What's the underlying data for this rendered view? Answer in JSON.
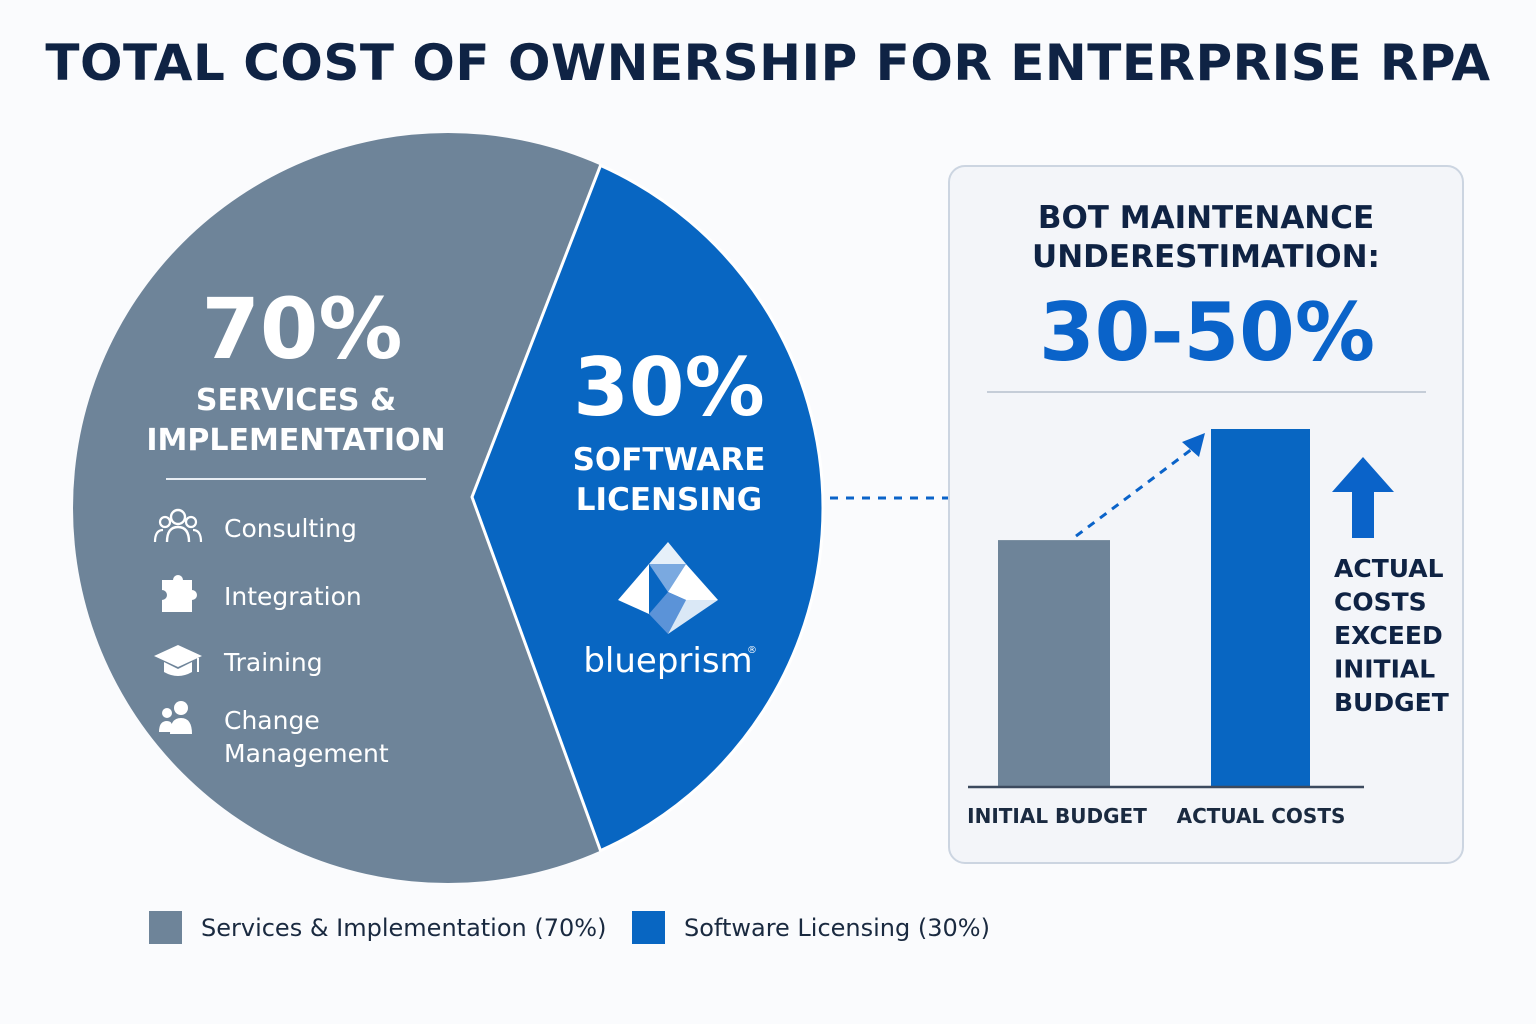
{
  "title": "TOTAL COST OF OWNERSHIP FOR ENTERPRISE RPA",
  "colors": {
    "services": "#6e8499",
    "software": "#0866c2",
    "dark_text": "#0f2344",
    "accent": "#0a63c9",
    "white": "#ffffff",
    "panel_bg": "#f3f5f9",
    "panel_border": "#ccd5e1",
    "divider": "#c5cdd8"
  },
  "chart_data": [
    {
      "type": "pie",
      "slices": [
        {
          "name": "Services & Implementation",
          "value": 70,
          "percent_label": "70%",
          "label_lines": [
            "SERVICES &",
            "IMPLEMENTATION"
          ],
          "color": "#6e8499",
          "items": [
            {
              "icon": "consulting-icon",
              "lines": [
                "Consulting"
              ]
            },
            {
              "icon": "puzzle-piece-icon",
              "lines": [
                "Integration"
              ]
            },
            {
              "icon": "graduation-cap-icon",
              "lines": [
                "Training"
              ]
            },
            {
              "icon": "people-icon",
              "lines": [
                "Change",
                "Management"
              ]
            }
          ]
        },
        {
          "name": "Software Licensing",
          "value": 30,
          "percent_label": "30%",
          "label_lines": [
            "SOFTWARE",
            "LICENSING"
          ],
          "color": "#0866c2",
          "logo_text": "blueprism",
          "logo_mark": "®"
        }
      ],
      "legend": [
        {
          "label": "Services & Implementation (70%)",
          "color": "#6e8499"
        },
        {
          "label": "Software Licensing (30%)",
          "color": "#0866c2"
        }
      ],
      "legend_position": "bottom-left"
    },
    {
      "type": "bar",
      "title_lines": [
        "BOT MAINTENANCE",
        "UNDERESTIMATION:"
      ],
      "highlight": "30-50%",
      "categories": [
        "INITIAL BUDGET",
        "ACTUAL COSTS"
      ],
      "values": [
        100,
        145
      ],
      "colors": [
        "#6e8499",
        "#0866c2"
      ],
      "ylim": [
        0,
        150
      ],
      "annotation_lines": [
        "ACTUAL",
        "COSTS",
        "EXCEED",
        "INITIAL",
        "BUDGET"
      ],
      "annotation_icon": "arrow-up-icon"
    }
  ]
}
